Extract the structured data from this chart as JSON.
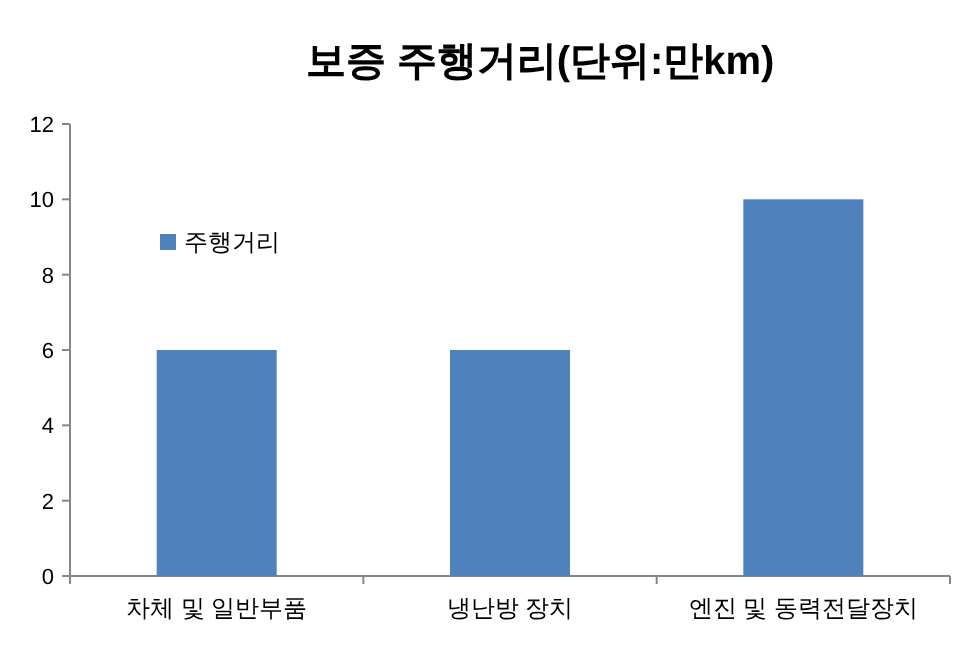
{
  "chart_data": {
    "type": "bar",
    "title": "보증 주행거리(단위:만km)",
    "categories": [
      "차체 및 일반부품",
      "냉난방 장치",
      "엔진 및 동력전달장치"
    ],
    "series": [
      {
        "name": "주행거리",
        "color": "#4f81bd",
        "values": [
          6,
          6,
          10
        ]
      }
    ],
    "ylim": [
      0,
      12
    ],
    "yticks": [
      0,
      2,
      4,
      6,
      8,
      10,
      12
    ],
    "legend": "top left"
  }
}
